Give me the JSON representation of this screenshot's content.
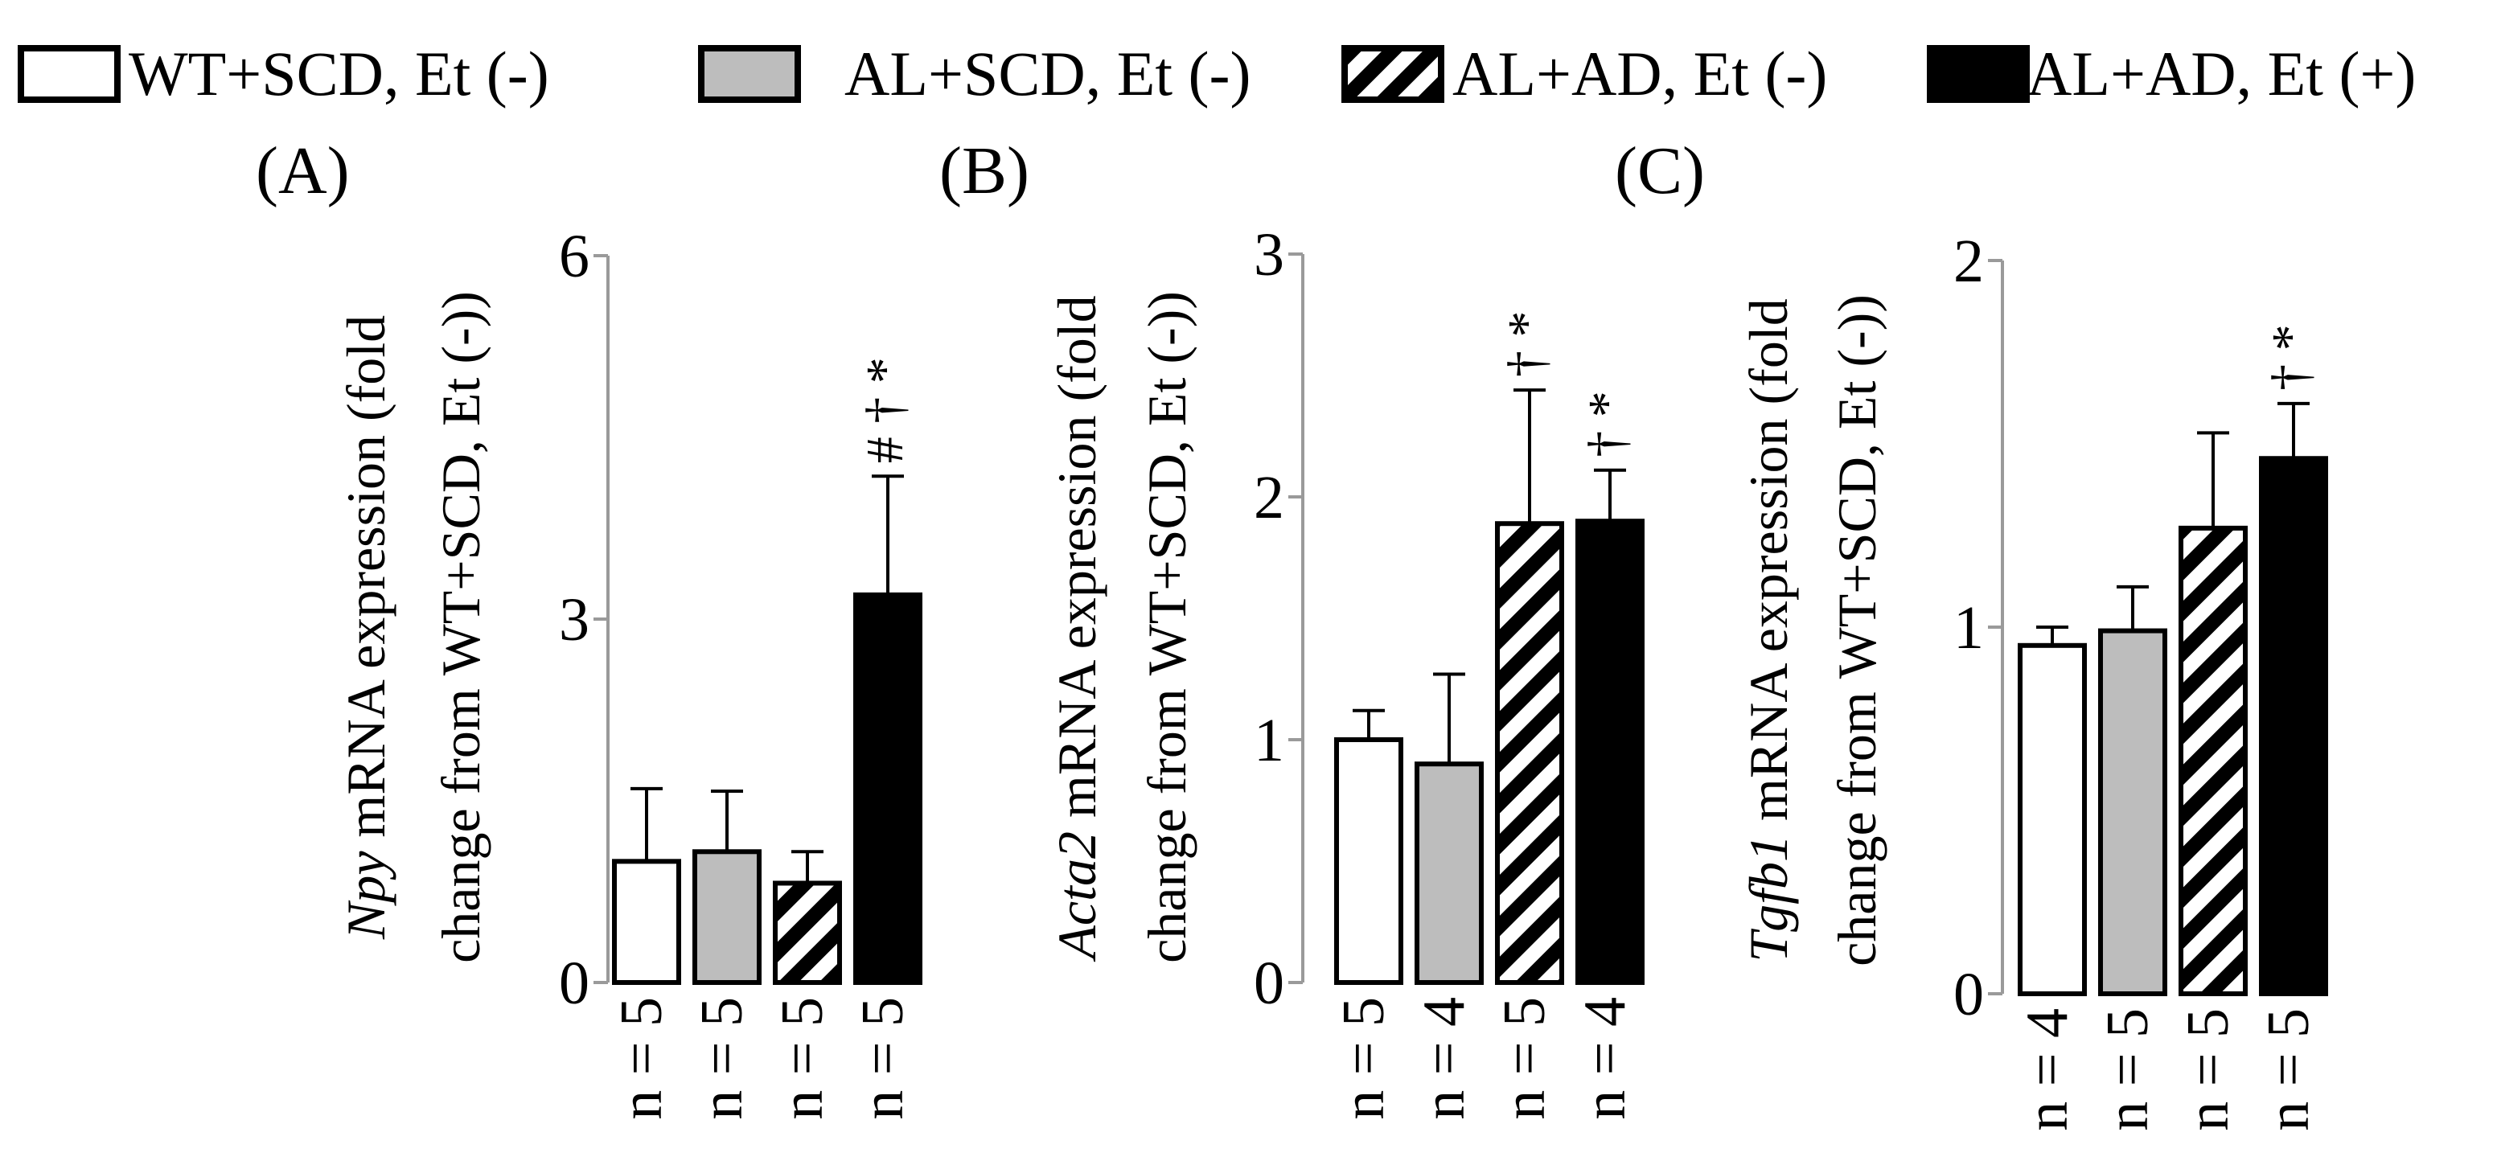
{
  "legend": [
    {
      "label": "WT+SCD, Et (-)",
      "fill": "white"
    },
    {
      "label": "AL+SCD, Et (-)",
      "fill": "gray"
    },
    {
      "label": "AL+AD, Et (-)",
      "fill": "hatch"
    },
    {
      "label": "AL+AD, Et (+)",
      "fill": "black"
    }
  ],
  "colors": {
    "white": "#ffffff",
    "gray": "#bdbdbd",
    "black": "#000000",
    "stroke": "#000000",
    "axis": "#9a9a9a"
  },
  "chart_data": [
    {
      "type": "bar",
      "panel": "(A)",
      "gene": "Npy",
      "ylabel_line1": " mRNA expression (fold",
      "ylabel_line2": "change from WT+SCD, Et (-))",
      "ylim": [
        0,
        6
      ],
      "yticks": [
        "0",
        "3",
        "6"
      ],
      "categories": [
        "WT+SCD, Et (-)",
        "AL+SCD, Et (-)",
        "AL+AD, Et (-)",
        "AL+AD, Et (+)"
      ],
      "values": [
        1.0,
        1.08,
        0.82,
        3.2
      ],
      "errors": [
        0.6,
        0.5,
        0.26,
        0.98
      ],
      "n_labels": [
        "n = 5",
        "n = 5",
        "n = 5",
        "n = 5"
      ],
      "annotations": [
        "",
        "",
        "",
        "# † *"
      ]
    },
    {
      "type": "bar",
      "panel": "(B)",
      "gene": "Acta2",
      "ylabel_line1": " mRNA expression (fold",
      "ylabel_line2": "change from WT+SCD, Et (-))",
      "ylim": [
        0,
        3
      ],
      "yticks": [
        "0",
        "1",
        "2",
        "3"
      ],
      "categories": [
        "WT+SCD, Et (-)",
        "AL+SCD, Et (-)",
        "AL+AD, Et (-)",
        "AL+AD, Et (+)"
      ],
      "values": [
        1.0,
        0.9,
        1.89,
        1.9
      ],
      "errors": [
        0.12,
        0.37,
        0.55,
        0.21
      ],
      "n_labels": [
        "n = 5",
        "n = 4",
        "n = 5",
        "n = 4"
      ],
      "annotations": [
        "",
        "",
        "† *",
        "† *"
      ]
    },
    {
      "type": "bar",
      "panel": "(C)",
      "gene": "Tgfb1",
      "ylabel_line1": " mRNA expression (fold",
      "ylabel_line2": "change from WT+SCD, Et (-))",
      "ylim": [
        0,
        2
      ],
      "yticks": [
        "0",
        "1",
        "2"
      ],
      "categories": [
        "WT+SCD, Et (-)",
        "AL+SCD, Et (-)",
        "AL+AD, Et (-)",
        "AL+AD, Et (+)"
      ],
      "values": [
        0.95,
        0.99,
        1.27,
        1.46
      ],
      "errors": [
        0.05,
        0.12,
        0.26,
        0.15
      ],
      "n_labels": [
        "n = 4",
        "n = 5",
        "n = 5",
        "n = 5"
      ],
      "annotations": [
        "",
        "",
        "",
        "† *"
      ]
    }
  ]
}
